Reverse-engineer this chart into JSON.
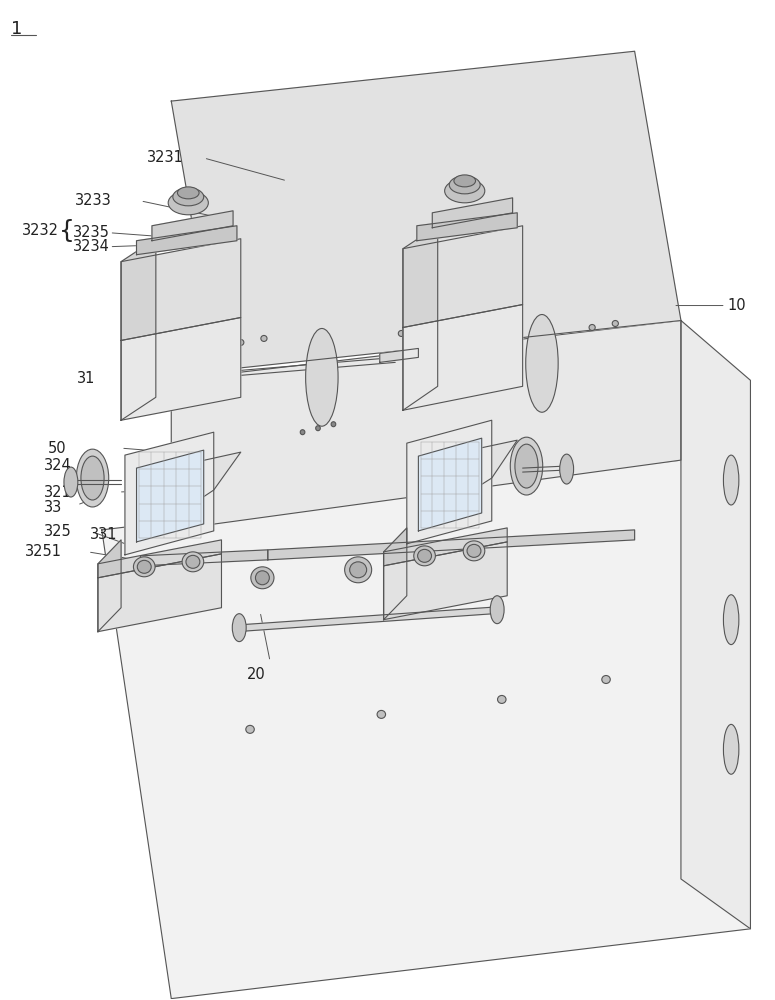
{
  "bg_color": "#ffffff",
  "line_color": "#555555",
  "label_color": "#222222"
}
